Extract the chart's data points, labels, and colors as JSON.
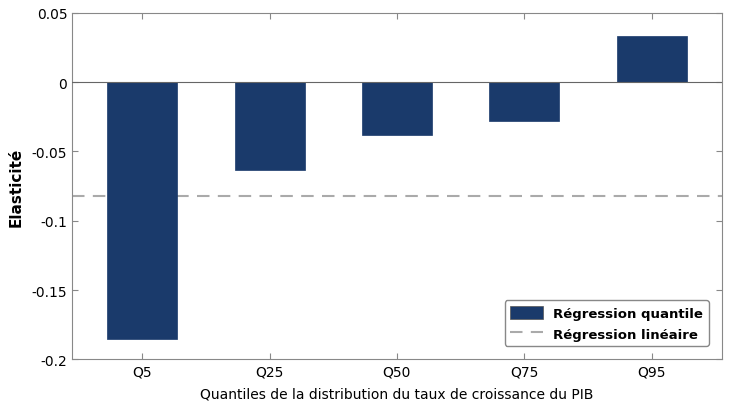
{
  "categories": [
    "Q5",
    "Q25",
    "Q50",
    "Q75",
    "Q95"
  ],
  "values": [
    -0.185,
    -0.063,
    -0.038,
    -0.028,
    0.033
  ],
  "bar_color": "#1a3a6b",
  "bar_edgecolor": "#1a3a6b",
  "linear_regression_value": -0.082,
  "linear_regression_color": "#aaaaaa",
  "linear_regression_linestyle": "--",
  "ylabel": "Elasticité",
  "xlabel": "Quantiles de la distribution du taux de croissance du PIB",
  "ylim": [
    -0.2,
    0.05
  ],
  "yticks": [
    -0.2,
    -0.15,
    -0.1,
    -0.05,
    0.0,
    0.05
  ],
  "ytick_labels": [
    "-0.2",
    "-0.15",
    "-0.1",
    "-0.05",
    "0",
    "0.05"
  ],
  "legend_bar_label": "Régression quantile",
  "legend_line_label": "Régression linéaire",
  "background_color": "#ffffff",
  "spine_color": "#888888",
  "bar_width": 0.55,
  "figsize": [
    7.3,
    4.1
  ],
  "dpi": 100
}
